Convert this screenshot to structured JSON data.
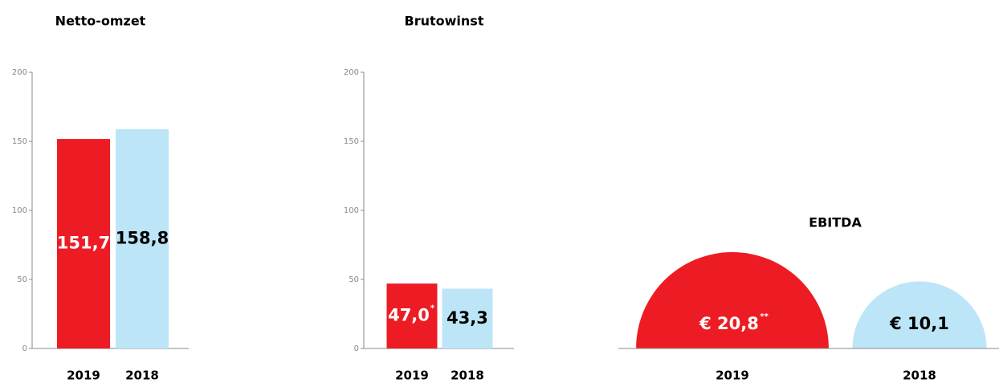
{
  "chart_data": [
    {
      "type": "bar",
      "title": "Netto-omzet",
      "categories": [
        "2019",
        "2018"
      ],
      "values": [
        151.7,
        158.8
      ],
      "value_labels": [
        "151,7",
        "158,8"
      ],
      "colors": [
        "#ed1c24",
        "#bde5f8"
      ],
      "label_colors": [
        "#ffffff",
        "#000000"
      ],
      "ylim": [
        0,
        200
      ],
      "yticks": [
        0,
        50,
        100,
        150,
        200
      ]
    },
    {
      "type": "bar",
      "title": "Brutowinst",
      "categories": [
        "2019",
        "2018"
      ],
      "values": [
        47.0,
        43.3
      ],
      "value_labels": [
        "47,0",
        "43,3"
      ],
      "value_notes": [
        "*",
        null
      ],
      "colors": [
        "#ed1c24",
        "#bde5f8"
      ],
      "label_colors": [
        "#ffffff",
        "#000000"
      ],
      "ylim": [
        0,
        200
      ],
      "yticks": [
        0,
        50,
        100,
        150,
        200
      ]
    },
    {
      "type": "semicircle",
      "title": "EBITDA",
      "categories": [
        "2019",
        "2018"
      ],
      "values": [
        20.8,
        10.1
      ],
      "value_labels": [
        "€ 20,8",
        "€ 10,1"
      ],
      "value_notes": [
        "**",
        null
      ],
      "colors": [
        "#ed1c24",
        "#bde5f8"
      ],
      "label_colors": [
        "#ffffff",
        "#000000"
      ]
    }
  ]
}
